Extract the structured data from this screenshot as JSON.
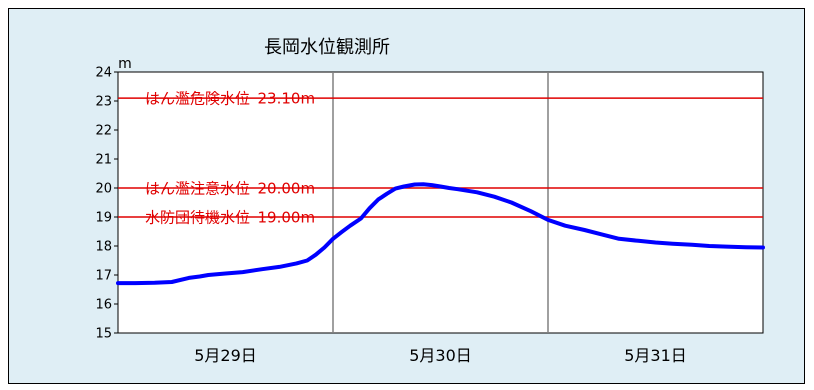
{
  "chart_data": {
    "type": "line",
    "title": "長岡水位観測所",
    "ylabel": "m",
    "xlabel": "",
    "ylim": [
      15,
      24
    ],
    "xlim": [
      0,
      3
    ],
    "yticks": [
      15,
      16,
      17,
      18,
      19,
      20,
      21,
      22,
      23,
      24
    ],
    "categories": [
      "5月29日",
      "5月30日",
      "5月31日"
    ],
    "category_centers": [
      0.5,
      1.5,
      2.5
    ],
    "day_separators": [
      1,
      2
    ],
    "grid": false,
    "legend": "none",
    "colors": {
      "background": "#dfeef5",
      "plot_background": "#ffffff",
      "series": "#0000ff",
      "thresholds": "#e00000",
      "separators": "#808080"
    },
    "thresholds": [
      {
        "label": "はん濫危険水位",
        "value_text": "23.10m",
        "value": 23.1
      },
      {
        "label": "はん濫注意水位",
        "value_text": "20.00m",
        "value": 20.0
      },
      {
        "label": "水防団待機水位",
        "value_text": "19.00m",
        "value": 19.0
      }
    ],
    "series": [
      {
        "x": [
          0.0,
          0.08,
          0.17,
          0.25,
          0.33,
          0.38,
          0.42,
          0.5,
          0.58,
          0.67,
          0.75,
          0.83,
          0.88,
          0.92,
          0.96,
          1.0,
          1.04,
          1.08,
          1.13,
          1.17,
          1.21,
          1.25,
          1.29,
          1.33,
          1.38,
          1.42,
          1.46,
          1.5,
          1.54,
          1.58,
          1.67,
          1.75,
          1.83,
          1.92,
          2.0,
          2.08,
          2.17,
          2.25,
          2.33,
          2.42,
          2.5,
          2.58,
          2.67,
          2.75,
          2.83,
          2.92,
          3.0
        ],
        "values": [
          16.72,
          16.72,
          16.73,
          16.76,
          16.9,
          16.95,
          17.0,
          17.05,
          17.1,
          17.2,
          17.28,
          17.4,
          17.5,
          17.7,
          17.95,
          18.25,
          18.48,
          18.7,
          18.95,
          19.3,
          19.6,
          19.8,
          19.98,
          20.05,
          20.12,
          20.13,
          20.1,
          20.05,
          20.0,
          19.96,
          19.85,
          19.7,
          19.5,
          19.2,
          18.9,
          18.7,
          18.55,
          18.4,
          18.25,
          18.18,
          18.12,
          18.08,
          18.04,
          18.0,
          17.98,
          17.96,
          17.95
        ]
      }
    ]
  }
}
